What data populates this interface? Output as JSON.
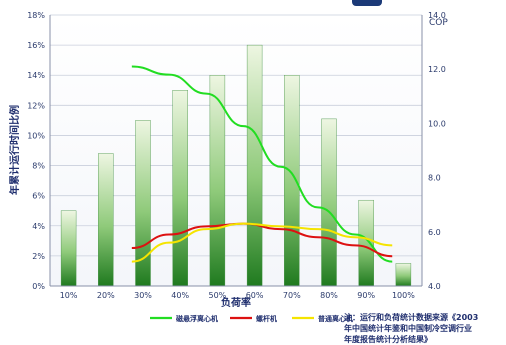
{
  "chart_data": {
    "type": "bar",
    "categories": [
      "10%",
      "20%",
      "30%",
      "40%",
      "50%",
      "60%",
      "70%",
      "80%",
      "90%",
      "100%"
    ],
    "values": [
      5,
      8.8,
      11,
      13,
      14,
      16,
      14,
      11.1,
      5.7,
      1.5
    ],
    "xlabel": "负荷率",
    "ylabel": "年累计运行时间比例",
    "ylim": [
      0,
      18
    ],
    "yticks": [
      "0%",
      "2%",
      "4%",
      "6%",
      "8%",
      "10%",
      "12%",
      "14%",
      "16%",
      "18%"
    ],
    "y2label": "COP",
    "y2lim": [
      4.0,
      14.0
    ],
    "y2ticks": [
      "4.0",
      "6.0",
      "8.0",
      "10.0",
      "12.0",
      "14.0"
    ],
    "grid": true,
    "series": [
      {
        "name": "磁悬浮离心机",
        "color": "#22dd22",
        "values": [
          null,
          null,
          12.1,
          11.8,
          11.1,
          9.9,
          8.4,
          6.9,
          5.9,
          4.9
        ]
      },
      {
        "name": "螺杆机",
        "color": "#dd1111",
        "values": [
          null,
          null,
          5.4,
          5.9,
          6.2,
          6.3,
          6.1,
          5.8,
          5.5,
          5.1
        ]
      },
      {
        "name": "普通离心机",
        "color": "#f5e400",
        "values": [
          null,
          null,
          4.9,
          5.6,
          6.1,
          6.3,
          6.2,
          6.1,
          5.8,
          5.5
        ]
      }
    ],
    "legend_position": "bottom",
    "note": [
      "注：运行和负荷统计数据来源《2003",
      "年中国统计年鉴和中国制冷空调行业",
      "年度报告统计分析结果》"
    ]
  }
}
